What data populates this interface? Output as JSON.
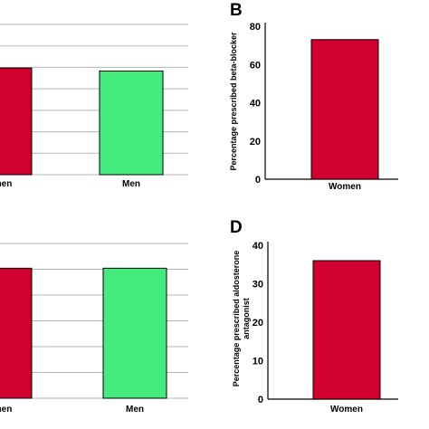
{
  "colors": {
    "women": "#d1002f",
    "men": "#43ec7c"
  },
  "chart_data": [
    {
      "panel": "",
      "type": "bar",
      "categories": [
        "Women",
        "Men"
      ],
      "category_labels": [
        "omen",
        "Men"
      ],
      "values": [
        71,
        69
      ],
      "ylim": [
        0,
        100
      ],
      "ylabel": "",
      "colors": [
        "#d1002f",
        "#43ec7c"
      ],
      "grid": true
    },
    {
      "panel": "B",
      "type": "bar",
      "categories": [
        "Women"
      ],
      "category_labels": [
        "Women"
      ],
      "values": [
        73
      ],
      "ylim": [
        0,
        80
      ],
      "yticks": [
        0,
        20,
        40,
        60,
        80
      ],
      "ylabel": "Percentage prescribed beta-blocker",
      "colors": [
        "#d1002f"
      ],
      "grid": false
    },
    {
      "panel": "",
      "type": "bar",
      "categories": [
        "Women",
        "Men"
      ],
      "category_labels": [
        "omen",
        "Men"
      ],
      "values": [
        84,
        84
      ],
      "ylim": [
        0,
        100
      ],
      "ylabel": "",
      "colors": [
        "#d1002f",
        "#43ec7c"
      ],
      "grid": true
    },
    {
      "panel": "D",
      "type": "bar",
      "categories": [
        "Women"
      ],
      "category_labels": [
        "Women"
      ],
      "values": [
        36
      ],
      "ylim": [
        0,
        40
      ],
      "yticks": [
        0,
        10,
        20,
        30,
        40
      ],
      "ylabel_lines": [
        "Percentage prescribed aldosterone",
        "antagonist"
      ],
      "colors": [
        "#d1002f"
      ],
      "grid": false
    }
  ]
}
